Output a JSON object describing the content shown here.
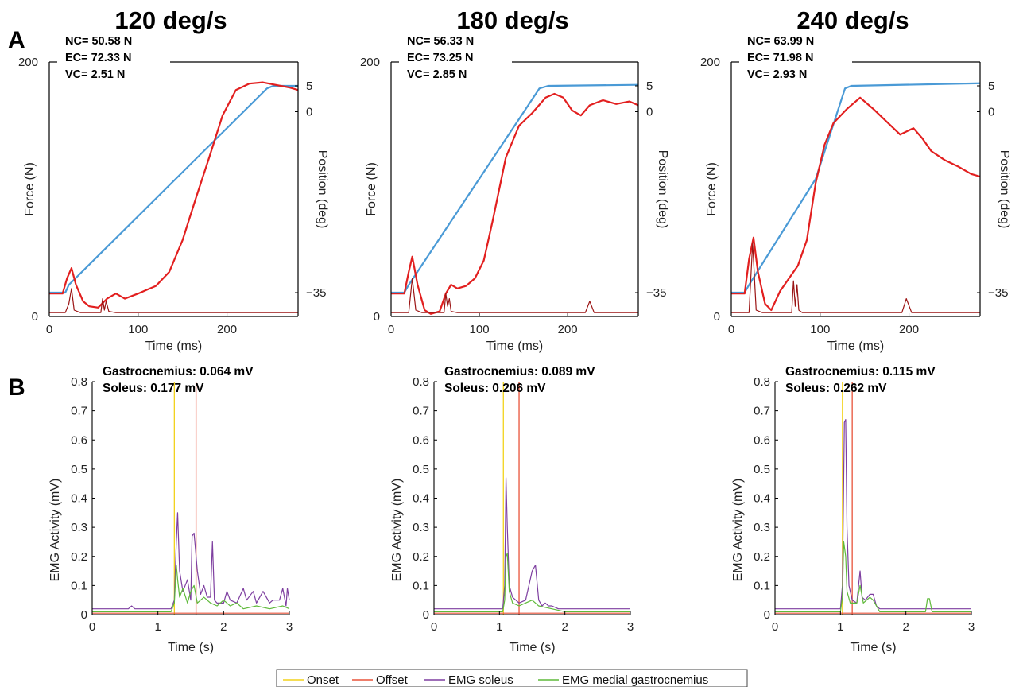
{
  "panel_labels": [
    "A",
    "B"
  ],
  "legend": [
    {
      "label": "Onset",
      "color": "#f2d21b"
    },
    {
      "label": "Offset",
      "color": "#e8533a"
    },
    {
      "label": "EMG soleus",
      "color": "#7e3fa0"
    },
    {
      "label": "EMG medial gastrocnemius",
      "color": "#5fba3a"
    }
  ],
  "colors": {
    "position": "#4a9ad6",
    "force": "#e21f1f",
    "force_thin": "#9b1414",
    "onset": "#f2d21b",
    "offset": "#e8533a",
    "soleus": "#7e3fa0",
    "gastrocnemius": "#5fba3a"
  },
  "chart_data": [
    {
      "type": "line",
      "title": "120 deg/s",
      "xlabel": "Time (ms)",
      "ylabel": "Force (N)",
      "y2label": "Position (deg)",
      "xlim": [
        0,
        280
      ],
      "ylim": [
        0,
        200
      ],
      "y2lim": [
        -35,
        5
      ],
      "xticks": [
        "0",
        "100",
        "200"
      ],
      "yticks": [
        "0",
        "200"
      ],
      "y2ticks": [
        "−35",
        "0",
        "5"
      ],
      "annotations": [
        "NC= 50.58 N",
        "EC= 72.33 N",
        "VC= 2.51 N"
      ],
      "series": [
        {
          "role": "position",
          "x": [
            0,
            18,
            22,
            245,
            252,
            280
          ],
          "y": [
            -35,
            -35,
            -33.5,
            4.5,
            5,
            5
          ]
        },
        {
          "role": "force",
          "x": [
            0,
            15,
            20,
            25,
            30,
            38,
            45,
            55,
            65,
            75,
            85,
            100,
            110,
            120,
            135,
            150,
            165,
            180,
            195,
            210,
            225,
            240,
            255,
            270,
            280
          ],
          "y": [
            18,
            18,
            30,
            38,
            25,
            12,
            8,
            7,
            14,
            18,
            14,
            18,
            21,
            24,
            35,
            60,
            93,
            125,
            158,
            178,
            183,
            184,
            182,
            180,
            178
          ]
        },
        {
          "role": "force_thin",
          "x": [
            0,
            18,
            22,
            25,
            28,
            35,
            58,
            60,
            62,
            64,
            67,
            75,
            280
          ],
          "y": [
            3,
            3,
            10,
            22,
            5,
            3,
            3,
            14,
            5,
            12,
            4,
            3,
            3
          ]
        }
      ]
    },
    {
      "type": "line",
      "title": "180 deg/s",
      "xlabel": "Time (ms)",
      "ylabel": "Force (N)",
      "y2label": "Position (deg)",
      "xlim": [
        0,
        280
      ],
      "ylim": [
        0,
        200
      ],
      "y2lim": [
        -35,
        5
      ],
      "xticks": [
        "0",
        "100",
        "200"
      ],
      "yticks": [
        "0",
        "200"
      ],
      "y2ticks": [
        "−35",
        "0",
        "5"
      ],
      "annotations": [
        "NC= 56.33 N",
        "EC= 73.25 N",
        "VC= 2.85 N"
      ],
      "series": [
        {
          "role": "position",
          "x": [
            0,
            15,
            20,
            168,
            178,
            280
          ],
          "y": [
            -35,
            -35,
            -33.5,
            4.5,
            5,
            5.2
          ]
        },
        {
          "role": "force",
          "x": [
            0,
            15,
            20,
            24,
            30,
            38,
            45,
            55,
            62,
            68,
            75,
            85,
            95,
            105,
            115,
            130,
            145,
            160,
            175,
            185,
            195,
            205,
            215,
            225,
            240,
            255,
            270,
            280
          ],
          "y": [
            18,
            18,
            35,
            47,
            25,
            5,
            2,
            4,
            18,
            25,
            22,
            24,
            30,
            44,
            75,
            125,
            150,
            160,
            172,
            175,
            172,
            162,
            158,
            166,
            170,
            167,
            169,
            166
          ]
        },
        {
          "role": "force_thin",
          "x": [
            0,
            20,
            24,
            28,
            35,
            60,
            62,
            64,
            66,
            68,
            75,
            220,
            225,
            230,
            280
          ],
          "y": [
            3,
            3,
            30,
            5,
            3,
            3,
            18,
            8,
            14,
            4,
            3,
            3,
            12,
            3,
            3
          ]
        }
      ]
    },
    {
      "type": "line",
      "title": "240 deg/s",
      "xlabel": "Time (ms)",
      "ylabel": "Force (N)",
      "y2label": "Position (deg)",
      "xlim": [
        0,
        280
      ],
      "ylim": [
        0,
        200
      ],
      "y2lim": [
        -35,
        5
      ],
      "xticks": [
        "0",
        "100",
        "200"
      ],
      "yticks": [
        "0",
        "200"
      ],
      "y2ticks": [
        "−35",
        "0",
        "5"
      ],
      "annotations": [
        "NC= 63.99 N",
        "EC= 71.98 N",
        "VC= 2.93 N"
      ],
      "series": [
        {
          "role": "position",
          "x": [
            0,
            15,
            20,
            95,
            128,
            135,
            280
          ],
          "y": [
            -35,
            -35,
            -33.5,
            -13,
            4.5,
            5,
            5.5
          ]
        },
        {
          "role": "force",
          "x": [
            0,
            15,
            20,
            25,
            30,
            38,
            45,
            55,
            65,
            75,
            85,
            95,
            105,
            115,
            130,
            145,
            160,
            175,
            190,
            205,
            215,
            225,
            240,
            255,
            270,
            280
          ],
          "y": [
            18,
            18,
            45,
            62,
            35,
            10,
            5,
            20,
            30,
            40,
            60,
            105,
            135,
            152,
            163,
            172,
            163,
            153,
            143,
            148,
            140,
            130,
            123,
            118,
            112,
            110
          ]
        },
        {
          "role": "force_thin",
          "x": [
            0,
            20,
            24,
            28,
            35,
            68,
            70,
            72,
            74,
            76,
            80,
            192,
            197,
            203,
            280
          ],
          "y": [
            3,
            3,
            58,
            5,
            3,
            3,
            28,
            8,
            25,
            5,
            3,
            3,
            14,
            3,
            3
          ]
        }
      ]
    },
    {
      "type": "line",
      "xlabel": "Time (s)",
      "ylabel": "EMG Activity (mV)",
      "xlim": [
        0,
        3
      ],
      "ylim": [
        0,
        0.8
      ],
      "xticks": [
        "0",
        "1",
        "2",
        "3"
      ],
      "yticks": [
        "0",
        "0.1",
        "0.2",
        "0.3",
        "0.4",
        "0.5",
        "0.6",
        "0.7",
        "0.8"
      ],
      "annotations": [
        "Gastrocnemius: 0.064 mV",
        "Soleus: 0.177 mV"
      ],
      "onset": 1.25,
      "offset": 1.58,
      "series": [
        {
          "name": "EMG soleus",
          "x": [
            0,
            0.55,
            0.6,
            0.65,
            1.2,
            1.25,
            1.28,
            1.3,
            1.33,
            1.38,
            1.45,
            1.5,
            1.52,
            1.55,
            1.6,
            1.65,
            1.7,
            1.75,
            1.8,
            1.83,
            1.86,
            1.9,
            2.0,
            2.05,
            2.1,
            2.2,
            2.3,
            2.35,
            2.45,
            2.5,
            2.6,
            2.7,
            2.75,
            2.85,
            2.9,
            2.95,
            2.97,
            3.0
          ],
          "y": [
            0.02,
            0.02,
            0.03,
            0.02,
            0.02,
            0.05,
            0.25,
            0.35,
            0.15,
            0.08,
            0.12,
            0.05,
            0.27,
            0.28,
            0.15,
            0.07,
            0.1,
            0.06,
            0.06,
            0.25,
            0.05,
            0.04,
            0.04,
            0.08,
            0.05,
            0.04,
            0.09,
            0.05,
            0.08,
            0.04,
            0.08,
            0.04,
            0.05,
            0.05,
            0.09,
            0.03,
            0.09,
            0.05
          ]
        },
        {
          "name": "EMG medial gastrocnemius",
          "x": [
            0,
            1.2,
            1.25,
            1.28,
            1.3,
            1.33,
            1.38,
            1.45,
            1.5,
            1.55,
            1.6,
            1.7,
            1.8,
            1.9,
            2.0,
            2.1,
            2.2,
            2.3,
            2.5,
            2.7,
            2.9,
            3.0
          ],
          "y": [
            0.01,
            0.01,
            0.04,
            0.17,
            0.12,
            0.06,
            0.09,
            0.04,
            0.08,
            0.1,
            0.04,
            0.06,
            0.04,
            0.03,
            0.05,
            0.03,
            0.04,
            0.02,
            0.03,
            0.02,
            0.03,
            0.02
          ]
        }
      ]
    },
    {
      "type": "line",
      "xlabel": "Time (s)",
      "ylabel": "EMG Activity (mV)",
      "xlim": [
        0,
        3
      ],
      "ylim": [
        0,
        0.8
      ],
      "xticks": [
        "0",
        "1",
        "2",
        "3"
      ],
      "yticks": [
        "0",
        "0.1",
        "0.2",
        "0.3",
        "0.4",
        "0.5",
        "0.6",
        "0.7",
        "0.8"
      ],
      "annotations": [
        "Gastrocnemius: 0.089 mV",
        "Soleus: 0.206 mV"
      ],
      "onset": 1.06,
      "offset": 1.3,
      "series": [
        {
          "name": "EMG soleus",
          "x": [
            0,
            1.05,
            1.08,
            1.1,
            1.12,
            1.15,
            1.2,
            1.3,
            1.4,
            1.45,
            1.5,
            1.55,
            1.6,
            1.65,
            1.7,
            1.75,
            1.8,
            1.9,
            2.0,
            2.5,
            3.0
          ],
          "y": [
            0.02,
            0.02,
            0.1,
            0.47,
            0.3,
            0.1,
            0.06,
            0.04,
            0.05,
            0.1,
            0.15,
            0.17,
            0.05,
            0.03,
            0.04,
            0.03,
            0.03,
            0.02,
            0.02,
            0.02,
            0.02
          ]
        },
        {
          "name": "EMG medial gastrocnemius",
          "x": [
            0,
            1.05,
            1.08,
            1.1,
            1.12,
            1.15,
            1.2,
            1.3,
            1.4,
            1.5,
            1.6,
            1.8,
            2.0,
            2.5,
            3.0
          ],
          "y": [
            0.01,
            0.01,
            0.05,
            0.2,
            0.21,
            0.08,
            0.04,
            0.03,
            0.04,
            0.05,
            0.03,
            0.02,
            0.01,
            0.01,
            0.01
          ]
        }
      ]
    },
    {
      "type": "line",
      "xlabel": "Time (s)",
      "ylabel": "EMG Activity (mV)",
      "xlim": [
        0,
        3
      ],
      "ylim": [
        0,
        0.8
      ],
      "xticks": [
        "0",
        "1",
        "2",
        "3"
      ],
      "yticks": [
        "0",
        "0.1",
        "0.2",
        "0.3",
        "0.4",
        "0.5",
        "0.6",
        "0.7",
        "0.8"
      ],
      "annotations": [
        "Gastrocnemius: 0.115 mV",
        "Soleus: 0.262 mV"
      ],
      "onset": 1.03,
      "offset": 1.18,
      "series": [
        {
          "name": "EMG soleus",
          "x": [
            0,
            1.0,
            1.03,
            1.06,
            1.08,
            1.1,
            1.13,
            1.18,
            1.25,
            1.3,
            1.33,
            1.38,
            1.45,
            1.5,
            1.55,
            1.6,
            1.7,
            1.8,
            2.0,
            2.5,
            3.0
          ],
          "y": [
            0.02,
            0.02,
            0.1,
            0.66,
            0.67,
            0.3,
            0.1,
            0.05,
            0.04,
            0.15,
            0.06,
            0.05,
            0.07,
            0.07,
            0.03,
            0.02,
            0.02,
            0.02,
            0.02,
            0.02,
            0.02
          ]
        },
        {
          "name": "EMG medial gastrocnemius",
          "x": [
            0,
            1.0,
            1.03,
            1.05,
            1.08,
            1.1,
            1.15,
            1.25,
            1.3,
            1.35,
            1.45,
            1.5,
            1.55,
            1.6,
            1.8,
            2.0,
            2.3,
            2.33,
            2.36,
            2.4,
            3.0
          ],
          "y": [
            0.01,
            0.01,
            0.06,
            0.25,
            0.2,
            0.08,
            0.04,
            0.04,
            0.1,
            0.04,
            0.06,
            0.05,
            0.03,
            0.01,
            0.01,
            0.01,
            0.01,
            0.055,
            0.055,
            0.01,
            0.01
          ]
        }
      ]
    }
  ]
}
